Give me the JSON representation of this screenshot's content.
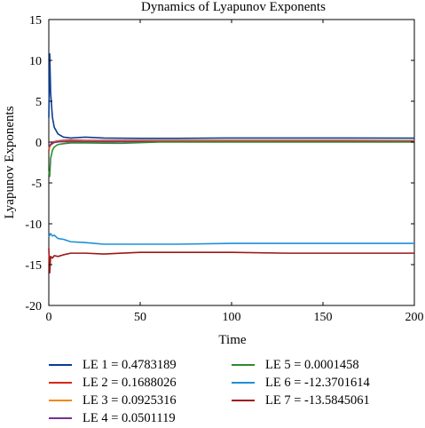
{
  "chart_data": {
    "type": "line",
    "title": "Dynamics of Lyapunov Exponents",
    "xlabel": "Time",
    "ylabel": "Lyapunov Exponents",
    "xlim": [
      0,
      200
    ],
    "ylim": [
      -20,
      15
    ],
    "xticks": [
      "0",
      "50",
      "100",
      "150",
      "200"
    ],
    "yticks": [
      "-20",
      "-15",
      "-10",
      "-5",
      "0",
      "5",
      "10",
      "15"
    ],
    "grid": false,
    "legend_position": "below",
    "series": [
      {
        "name": "LE 1 = 0.4783189",
        "color": "#0a3d91",
        "x": [
          0,
          0.5,
          1,
          2,
          3,
          5,
          8,
          12,
          20,
          30,
          50,
          70,
          100,
          130,
          160,
          200
        ],
        "y": [
          3.0,
          10.8,
          6.0,
          3.0,
          1.8,
          1.0,
          0.6,
          0.5,
          0.6,
          0.5,
          0.45,
          0.45,
          0.5,
          0.5,
          0.5,
          0.48
        ]
      },
      {
        "name": "LE 2 = 0.1688026",
        "color": "#d42a0f",
        "x": [
          0,
          1,
          2,
          4,
          7,
          12,
          20,
          40,
          80,
          120,
          160,
          200
        ],
        "y": [
          -1.0,
          -0.3,
          0.0,
          0.1,
          0.2,
          0.25,
          0.2,
          0.2,
          0.2,
          0.2,
          0.2,
          0.17
        ]
      },
      {
        "name": "LE 3 = 0.0925316",
        "color": "#f0880a",
        "x": [
          0,
          1,
          3,
          6,
          12,
          25,
          60,
          120,
          200
        ],
        "y": [
          -0.8,
          -0.4,
          0.0,
          0.1,
          0.1,
          0.1,
          0.1,
          0.1,
          0.09
        ]
      },
      {
        "name": "LE 4 = 0.0501119",
        "color": "#7a2e8f",
        "x": [
          0,
          1,
          3,
          6,
          12,
          25,
          60,
          120,
          200
        ],
        "y": [
          -0.6,
          -0.3,
          -0.05,
          0.05,
          0.05,
          0.05,
          0.05,
          0.05,
          0.05
        ]
      },
      {
        "name": "LE 5 = 0.0001458",
        "color": "#2e8b2e",
        "x": [
          0,
          0.5,
          1,
          2,
          3,
          5,
          8,
          12,
          20,
          40,
          60,
          100,
          150,
          200
        ],
        "y": [
          -3.5,
          -4.2,
          -2.0,
          -1.0,
          -0.6,
          -0.3,
          -0.2,
          -0.1,
          -0.1,
          -0.15,
          0.0,
          0.0,
          0.0,
          0.0
        ]
      },
      {
        "name": "LE 6 = -12.3701614",
        "color": "#1f8fd6",
        "x": [
          0,
          1,
          2,
          3,
          5,
          8,
          12,
          20,
          30,
          50,
          70,
          100,
          130,
          160,
          200
        ],
        "y": [
          -11.6,
          -11.2,
          -11.5,
          -11.4,
          -11.8,
          -11.9,
          -12.2,
          -12.3,
          -12.5,
          -12.5,
          -12.5,
          -12.4,
          -12.4,
          -12.4,
          -12.4
        ]
      },
      {
        "name": "LE 7 = -13.5845061",
        "color": "#a01515",
        "x": [
          0,
          0.5,
          1,
          2,
          3,
          5,
          8,
          12,
          20,
          30,
          50,
          80,
          100,
          130,
          160,
          200
        ],
        "y": [
          -13.0,
          -16.0,
          -14.0,
          -14.2,
          -13.9,
          -14.0,
          -13.8,
          -13.6,
          -13.6,
          -13.7,
          -13.5,
          -13.5,
          -13.5,
          -13.6,
          -13.6,
          -13.6
        ]
      }
    ]
  }
}
